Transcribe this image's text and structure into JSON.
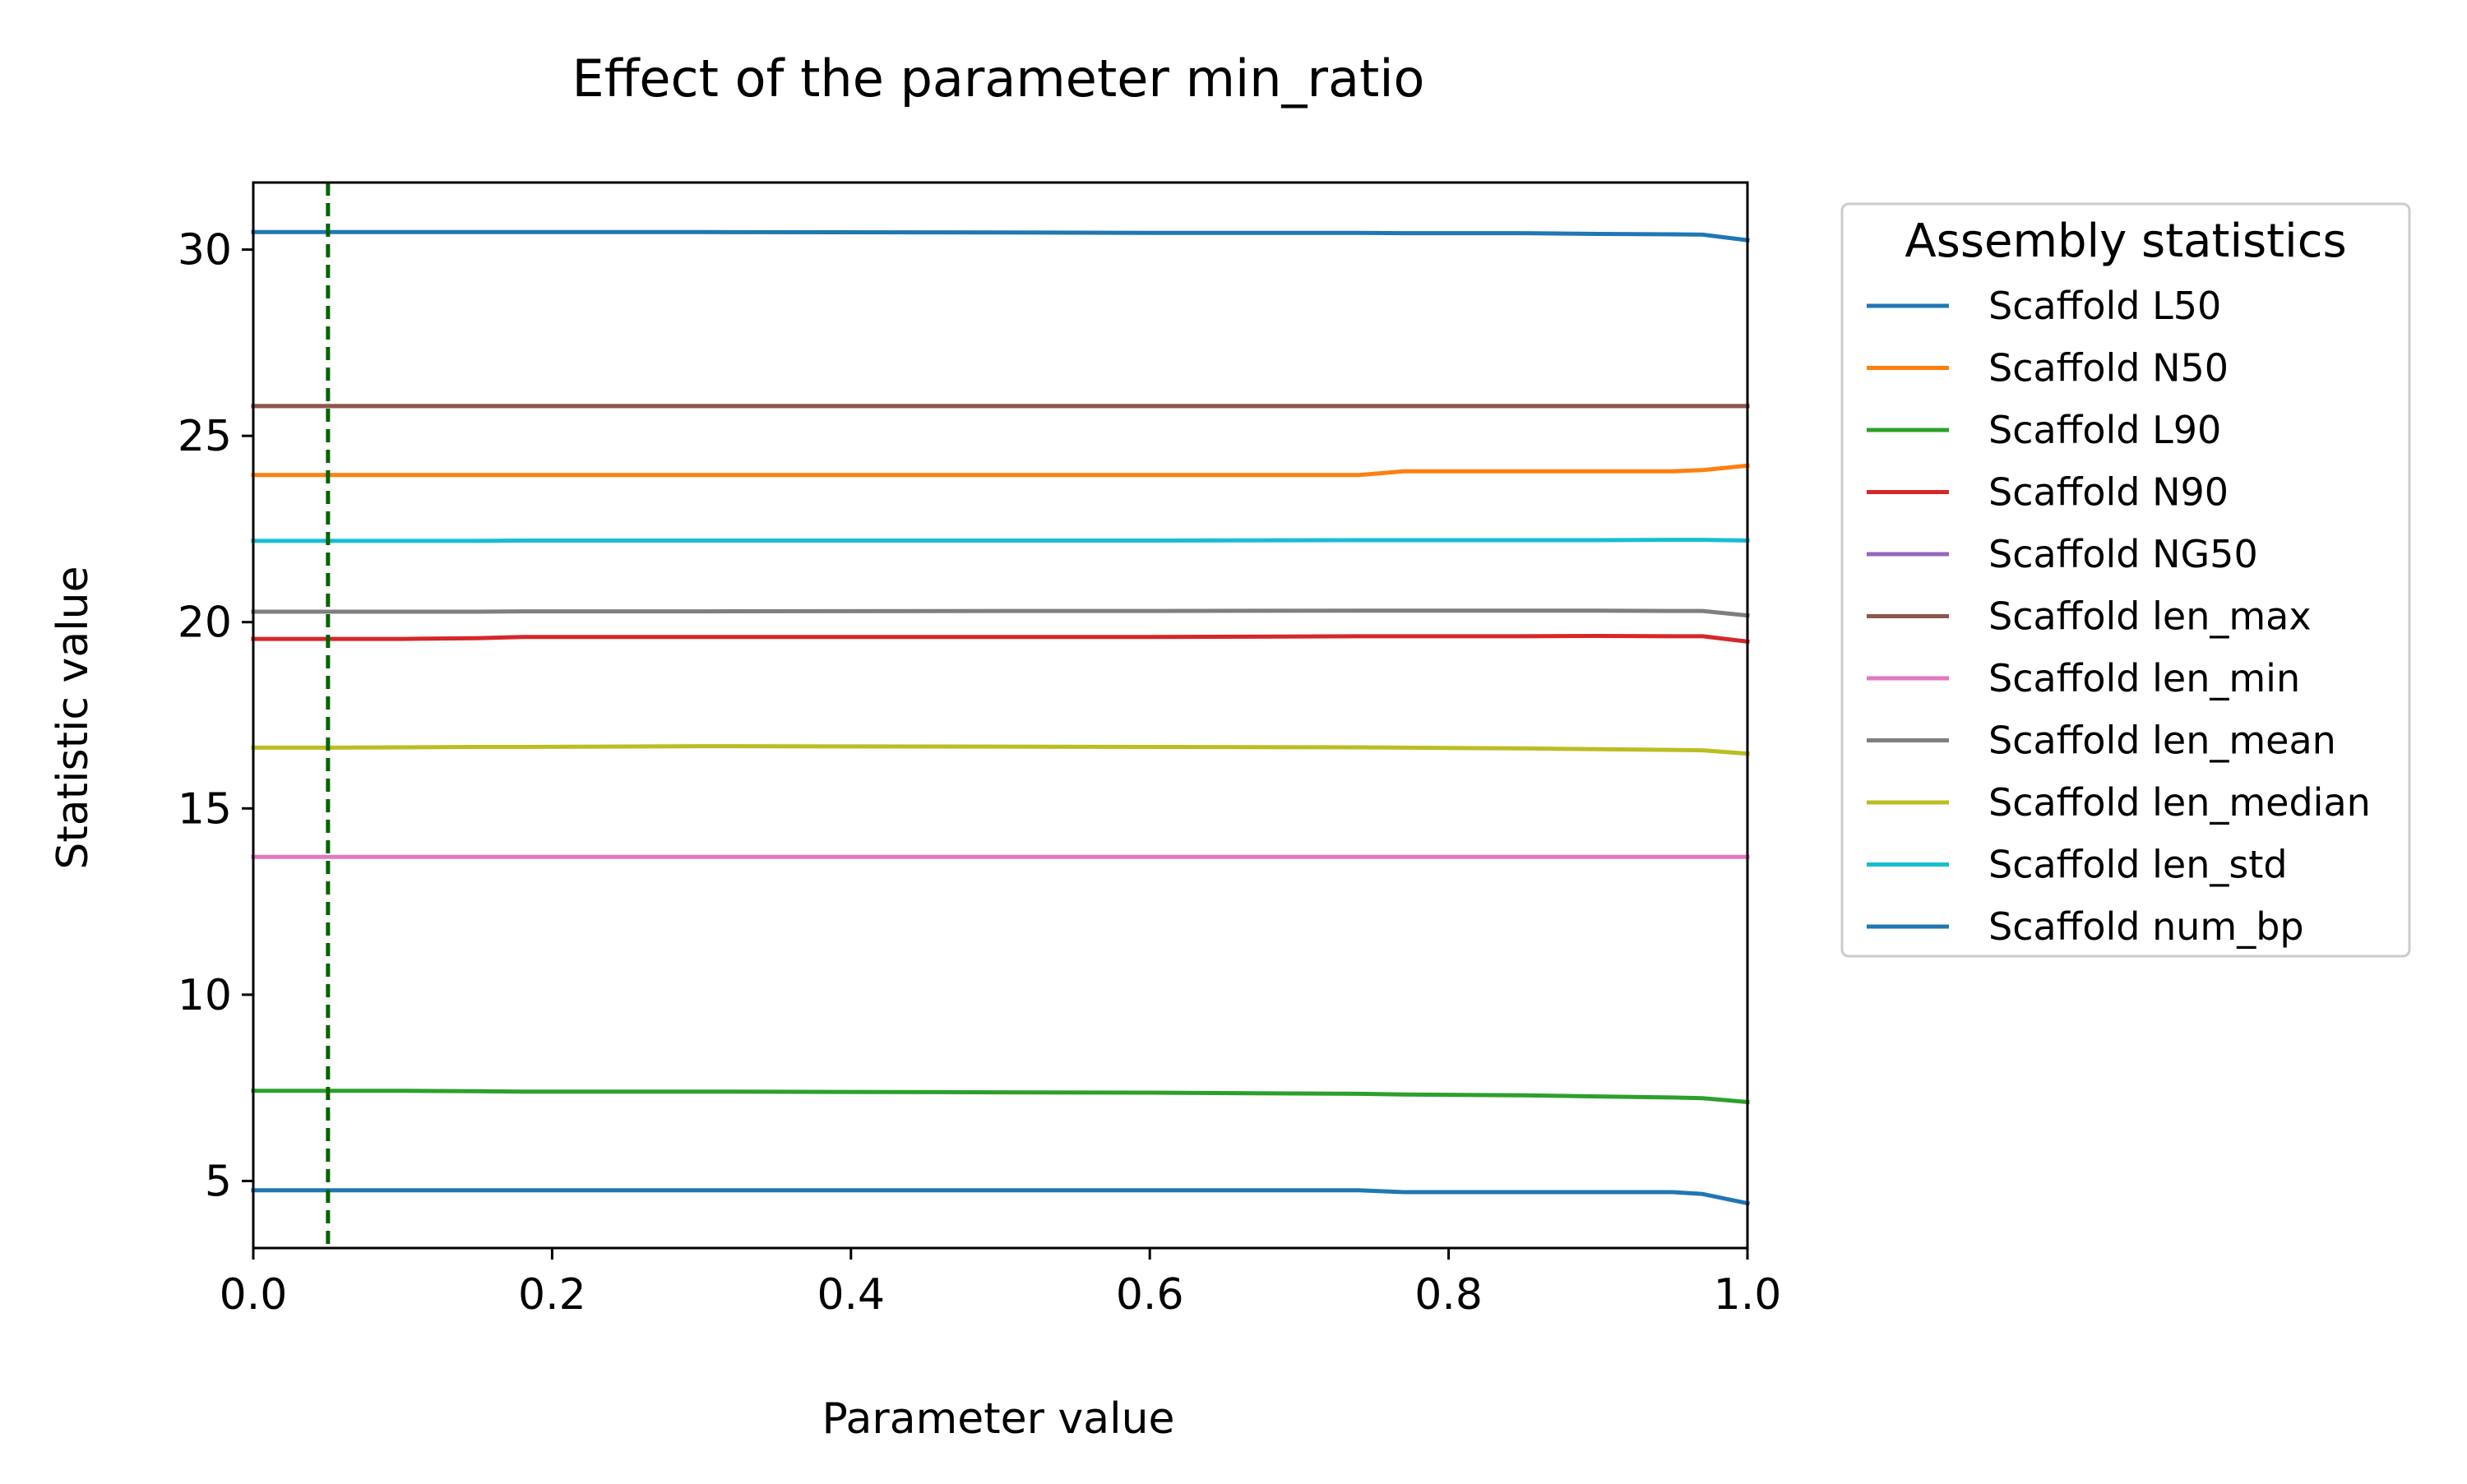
{
  "chart_data": {
    "type": "line",
    "title": "Effect of the parameter min_ratio",
    "xlabel": "Parameter value",
    "ylabel": "Statistic value",
    "xlim": [
      0.0,
      1.0
    ],
    "ylim": [
      3.2,
      31.8
    ],
    "xticks": [
      0.0,
      0.2,
      0.4,
      0.6,
      0.8,
      1.0
    ],
    "xtick_labels": [
      "0.0",
      "0.2",
      "0.4",
      "0.6",
      "0.8",
      "1.0"
    ],
    "yticks": [
      5,
      10,
      15,
      20,
      25,
      30
    ],
    "ytick_labels": [
      "5",
      "10",
      "15",
      "20",
      "25",
      "30"
    ],
    "grid": false,
    "legend": {
      "title": "Assembly statistics",
      "placement": "outside-right-top"
    },
    "reference_line": {
      "orientation": "vertical",
      "x": 0.05,
      "style": "dashed",
      "color": "#006400"
    },
    "x": [
      0.0,
      0.05,
      0.1,
      0.15,
      0.18,
      0.3,
      0.5,
      0.6,
      0.74,
      0.77,
      0.85,
      0.9,
      0.95,
      0.97,
      1.0
    ],
    "series": [
      {
        "name": "Scaffold L50",
        "color": "#1f77b4",
        "values": [
          4.75,
          4.75,
          4.75,
          4.75,
          4.75,
          4.75,
          4.75,
          4.75,
          4.75,
          4.7,
          4.7,
          4.7,
          4.7,
          4.65,
          4.4
        ]
      },
      {
        "name": "Scaffold N50",
        "color": "#ff7f0e",
        "values": [
          23.95,
          23.95,
          23.95,
          23.95,
          23.95,
          23.95,
          23.95,
          23.95,
          23.95,
          24.05,
          24.05,
          24.05,
          24.05,
          24.08,
          24.2
        ]
      },
      {
        "name": "Scaffold L90",
        "color": "#2ca02c",
        "values": [
          7.42,
          7.42,
          7.42,
          7.41,
          7.4,
          7.4,
          7.38,
          7.37,
          7.34,
          7.32,
          7.3,
          7.27,
          7.24,
          7.22,
          7.12
        ]
      },
      {
        "name": "Scaffold N90",
        "color": "#d62728",
        "values": [
          19.55,
          19.55,
          19.55,
          19.57,
          19.6,
          19.6,
          19.6,
          19.6,
          19.62,
          19.62,
          19.62,
          19.63,
          19.62,
          19.62,
          19.48
        ]
      },
      {
        "name": "Scaffold NG50",
        "color": "#9467bd",
        "values": [
          25.8,
          25.8,
          25.8,
          25.8,
          25.8,
          25.8,
          25.8,
          25.8,
          25.8,
          25.8,
          25.8,
          25.8,
          25.8,
          25.8,
          25.8
        ]
      },
      {
        "name": "Scaffold len_max",
        "color": "#8c564b",
        "values": [
          25.8,
          25.8,
          25.8,
          25.8,
          25.8,
          25.8,
          25.8,
          25.8,
          25.8,
          25.8,
          25.8,
          25.8,
          25.8,
          25.8,
          25.8
        ]
      },
      {
        "name": "Scaffold len_min",
        "color": "#e377c2",
        "values": [
          13.7,
          13.7,
          13.7,
          13.7,
          13.7,
          13.7,
          13.7,
          13.7,
          13.7,
          13.7,
          13.7,
          13.7,
          13.7,
          13.7,
          13.7
        ]
      },
      {
        "name": "Scaffold len_mean",
        "color": "#7f7f7f",
        "values": [
          20.28,
          20.28,
          20.28,
          20.28,
          20.29,
          20.29,
          20.3,
          20.3,
          20.31,
          20.31,
          20.31,
          20.31,
          20.3,
          20.3,
          20.18
        ]
      },
      {
        "name": "Scaffold len_median",
        "color": "#bcbd22",
        "values": [
          16.63,
          16.63,
          16.64,
          16.65,
          16.65,
          16.67,
          16.66,
          16.65,
          16.64,
          16.63,
          16.61,
          16.59,
          16.57,
          16.56,
          16.47
        ]
      },
      {
        "name": "Scaffold len_std",
        "color": "#17becf",
        "values": [
          22.18,
          22.18,
          22.18,
          22.18,
          22.19,
          22.19,
          22.19,
          22.19,
          22.2,
          22.2,
          22.2,
          22.2,
          22.21,
          22.21,
          22.19
        ]
      },
      {
        "name": "Scaffold num_bp",
        "color": "#1f77b4",
        "values": [
          30.47,
          30.47,
          30.47,
          30.47,
          30.47,
          30.47,
          30.46,
          30.45,
          30.45,
          30.44,
          30.44,
          30.42,
          30.41,
          30.4,
          30.25
        ]
      }
    ]
  }
}
